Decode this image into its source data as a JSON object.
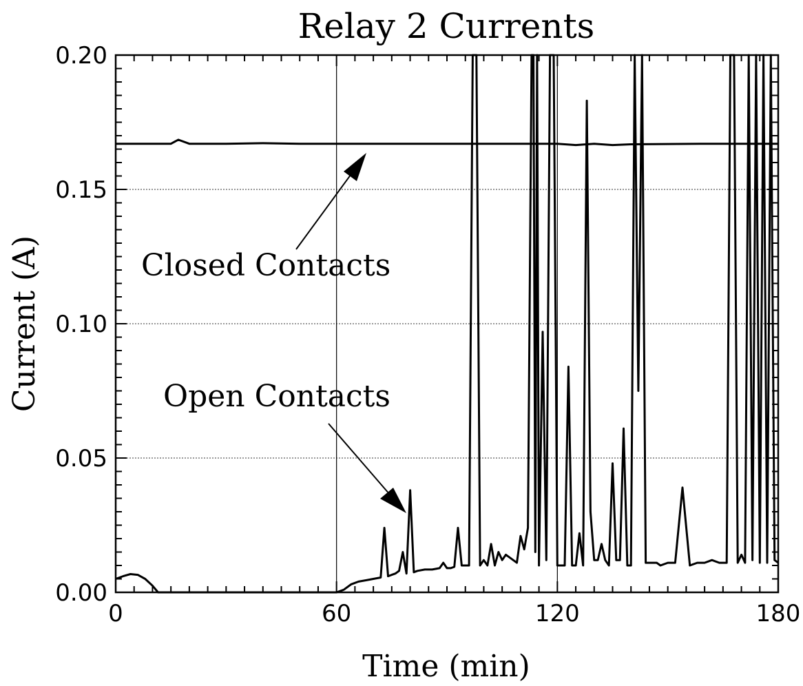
{
  "chart_data": {
    "type": "line",
    "title": "Relay 2 Currents",
    "xlabel": "Time (min)",
    "ylabel": "Current (A)",
    "xlim": [
      0,
      180
    ],
    "ylim": [
      0,
      0.2
    ],
    "x_ticks": [
      0,
      60,
      120,
      180
    ],
    "x_tick_labels": [
      "0",
      "60",
      "120",
      "180"
    ],
    "y_ticks": [
      0,
      0.05,
      0.1,
      0.15,
      0.2
    ],
    "y_tick_labels": [
      "0.00",
      "0.05",
      "0.10",
      "0.15",
      "0.20"
    ],
    "grid": "horizontal dotted lines at y ticks, solid vertical lines at 60 and 120",
    "annotations": [
      {
        "text": "Closed Contacts",
        "target": {
          "x": 69,
          "y": 0.1665
        }
      },
      {
        "text": "Open Contacts",
        "target": {
          "x": 78,
          "y": 0.03
        }
      }
    ],
    "series": [
      {
        "label": "Closed Contacts",
        "x": [
          0,
          10,
          15,
          17,
          20,
          30,
          40,
          50,
          60,
          80,
          100,
          120,
          125,
          130,
          135,
          140,
          160,
          180
        ],
        "y": [
          0.167,
          0.167,
          0.167,
          0.1685,
          0.167,
          0.167,
          0.1672,
          0.167,
          0.167,
          0.167,
          0.167,
          0.167,
          0.1665,
          0.167,
          0.1665,
          0.1668,
          0.167,
          0.167
        ]
      },
      {
        "label": "Open Contacts",
        "x": [
          0,
          2,
          4,
          6,
          8,
          10,
          11.5,
          12,
          60,
          62,
          64,
          66,
          68,
          70,
          72,
          73,
          74,
          75,
          76,
          77,
          78,
          79,
          80,
          81,
          82,
          84,
          86,
          88,
          89,
          90,
          91,
          92,
          93,
          94,
          95,
          96,
          97,
          98,
          99,
          100,
          101,
          102,
          103,
          104,
          105,
          106,
          107,
          108,
          109,
          110,
          111,
          112,
          113,
          113.5,
          114,
          114.5,
          115,
          116,
          117,
          118,
          119,
          120,
          121,
          122,
          123,
          124,
          125,
          126,
          127,
          128,
          129,
          130,
          131,
          132,
          133,
          134,
          135,
          136,
          137,
          138,
          139,
          140,
          141,
          142,
          143,
          144,
          145,
          146,
          147,
          148,
          150,
          152,
          154,
          156,
          158,
          160,
          162,
          164,
          166,
          167,
          168,
          169,
          170,
          171,
          172,
          173,
          174,
          175,
          176,
          177,
          178,
          179,
          180
        ],
        "y": [
          0.005,
          0.006,
          0.0068,
          0.0065,
          0.005,
          0.0025,
          0.0,
          0.0,
          0.0,
          0.001,
          0.003,
          0.004,
          0.0045,
          0.005,
          0.0055,
          0.024,
          0.006,
          0.0065,
          0.007,
          0.008,
          0.015,
          0.007,
          0.038,
          0.0075,
          0.008,
          0.0085,
          0.0085,
          0.009,
          0.011,
          0.009,
          0.009,
          0.0095,
          0.024,
          0.01,
          0.01,
          0.01,
          0.2,
          0.2,
          0.01,
          0.012,
          0.01,
          0.018,
          0.01,
          0.015,
          0.012,
          0.014,
          0.013,
          0.012,
          0.011,
          0.021,
          0.016,
          0.024,
          0.2,
          0.2,
          0.015,
          0.2,
          0.01,
          0.097,
          0.012,
          0.2,
          0.2,
          0.01,
          0.01,
          0.01,
          0.084,
          0.01,
          0.01,
          0.022,
          0.01,
          0.183,
          0.03,
          0.012,
          0.012,
          0.018,
          0.012,
          0.01,
          0.048,
          0.012,
          0.012,
          0.061,
          0.01,
          0.01,
          0.2,
          0.075,
          0.2,
          0.011,
          0.011,
          0.011,
          0.011,
          0.01,
          0.011,
          0.011,
          0.039,
          0.01,
          0.011,
          0.011,
          0.012,
          0.011,
          0.011,
          0.2,
          0.2,
          0.011,
          0.014,
          0.011,
          0.2,
          0.012,
          0.2,
          0.011,
          0.2,
          0.011,
          0.2,
          0.012,
          0.011
        ]
      }
    ]
  }
}
